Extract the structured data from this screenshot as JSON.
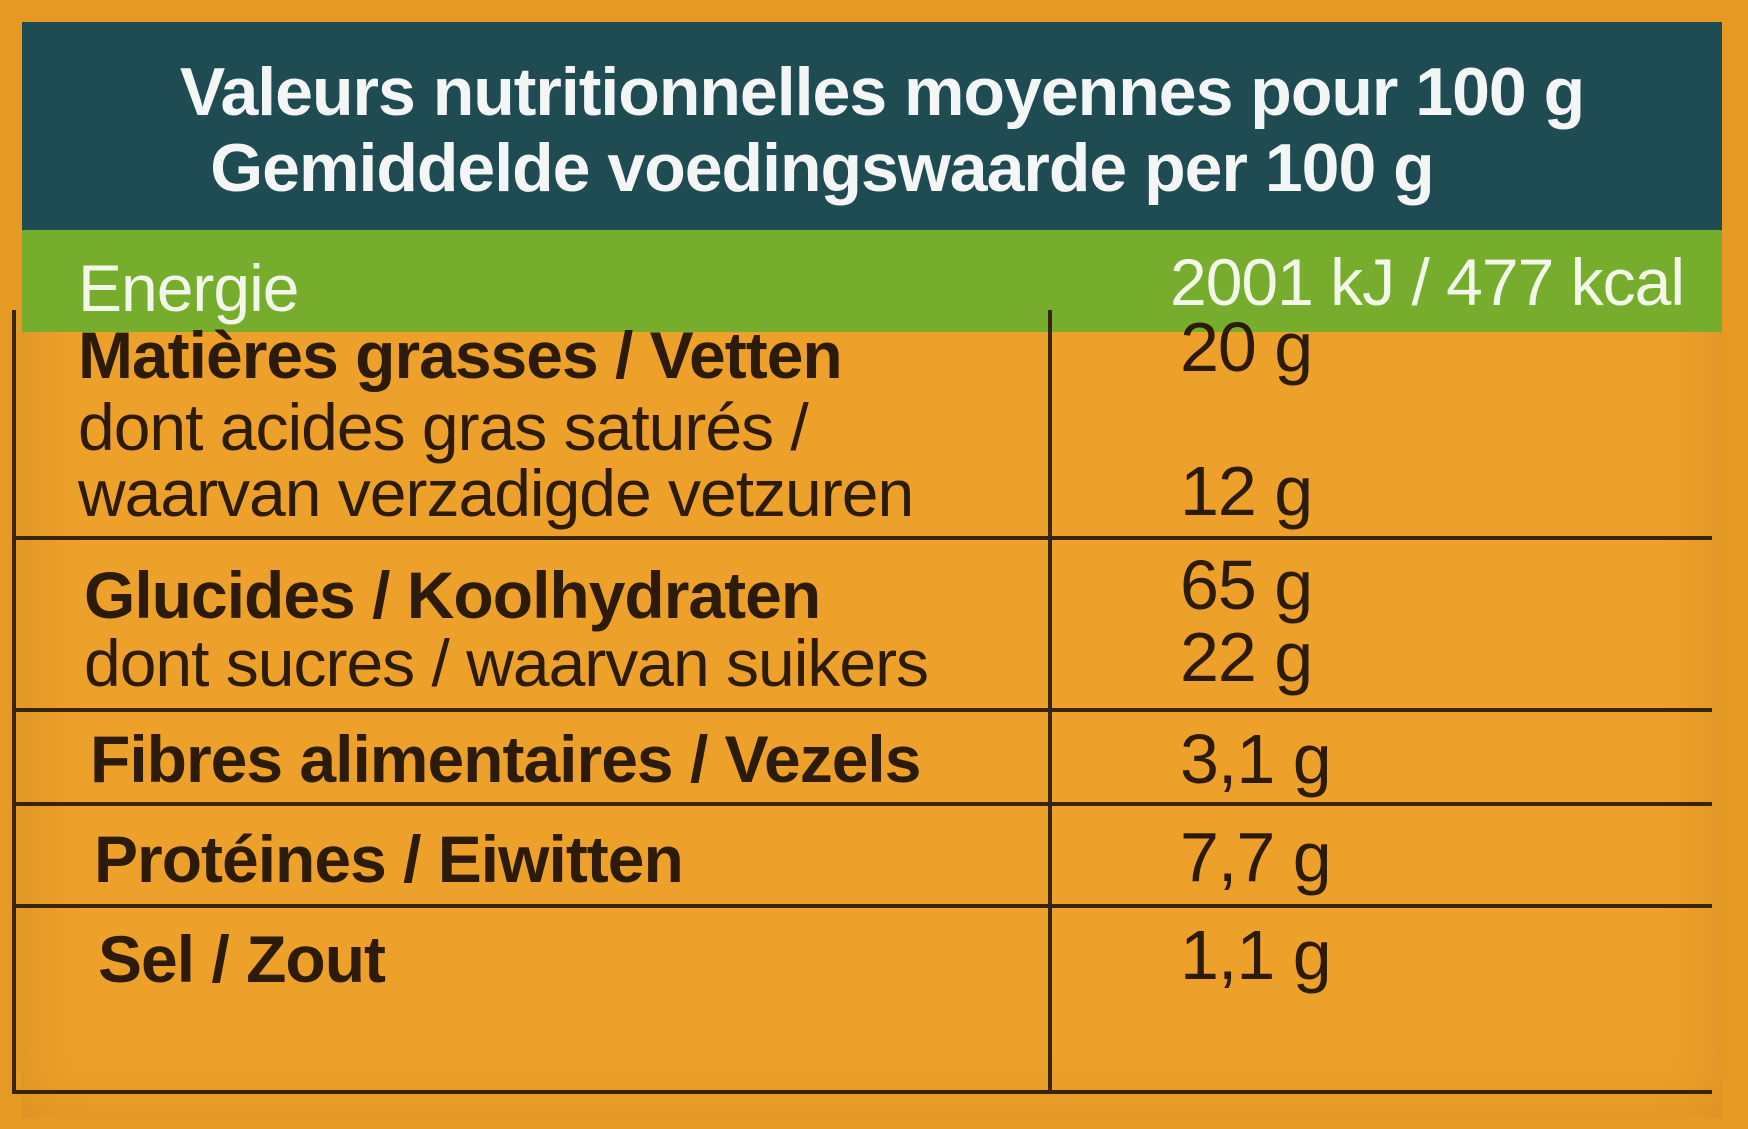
{
  "header": {
    "title_fr": "Valeurs nutritionnelles moyennes pour 100 g",
    "title_nl": "Gemiddelde voedingswaarde per 100 g"
  },
  "energy": {
    "label": "Energie",
    "value": "2001 kJ / 477 kcal"
  },
  "rows": [
    {
      "label": "Matières grasses / Vetten",
      "value": "20 g",
      "sub_label_line1": "dont acides gras saturés /",
      "sub_label_line2": "waarvan verzadigde vetzuren",
      "sub_value": "12 g"
    },
    {
      "label": "Glucides / Koolhydraten",
      "value": "65 g",
      "sub_label": "dont sucres / waarvan suikers",
      "sub_value": "22 g"
    },
    {
      "label": "Fibres alimentaires / Vezels",
      "value": "3,1 g"
    },
    {
      "label": "Protéines / Eiwitten",
      "value": "7,7 g"
    },
    {
      "label": "Sel / Zout",
      "value": "1,1 g"
    }
  ],
  "colors": {
    "header_bg": "#1f4c53",
    "energy_bg": "#77ad2c",
    "table_bg": "#eda12a",
    "border": "#3a2408"
  }
}
